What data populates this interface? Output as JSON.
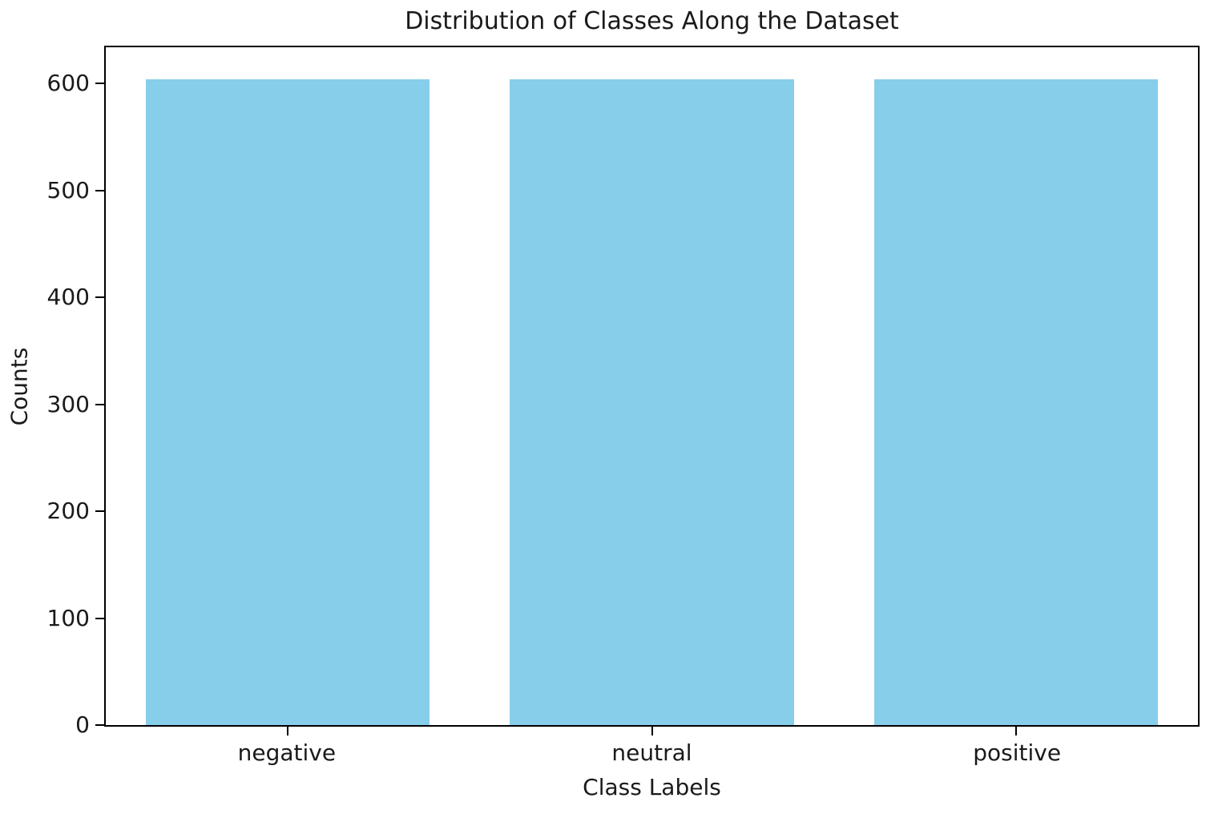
{
  "chart_data": {
    "type": "bar",
    "title": "Distribution of Classes Along the Dataset",
    "xlabel": "Class Labels",
    "ylabel": "Counts",
    "categories": [
      "negative",
      "neutral",
      "positive"
    ],
    "values": [
      604,
      604,
      604
    ],
    "yticks": [
      0,
      100,
      200,
      300,
      400,
      500,
      600
    ],
    "ylim": [
      0,
      634
    ],
    "bar_color": "#87CEEB",
    "background_color": "#ffffff",
    "spine_color": "#000000",
    "grid": false,
    "legend": "none"
  }
}
